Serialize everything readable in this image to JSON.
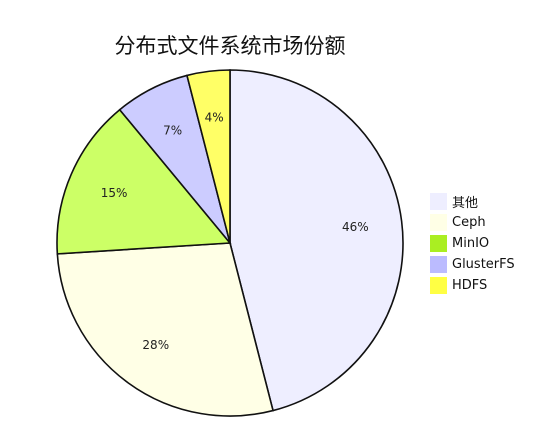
{
  "chart_data": {
    "type": "pie",
    "title": "分布式文件系统市场份额",
    "slices": [
      {
        "name": "其他",
        "value": 46,
        "label": "46%",
        "color": "#eeeeff"
      },
      {
        "name": "Ceph",
        "value": 28,
        "label": "28%",
        "color": "#ffffe6"
      },
      {
        "name": "MinIO",
        "value": 15,
        "label": "15%",
        "color": "#ccff66"
      },
      {
        "name": "GlusterFS",
        "value": 7,
        "label": "7%",
        "color": "#ccccff"
      },
      {
        "name": "HDFS",
        "value": 4,
        "label": "4%",
        "color": "#ffff66"
      }
    ],
    "legend_colors": [
      "#eeeeff",
      "#ffffe6",
      "#aaee22",
      "#bbbbff",
      "#ffff44"
    ],
    "legend_position": "right",
    "start": "top",
    "direction": "clockwise"
  }
}
